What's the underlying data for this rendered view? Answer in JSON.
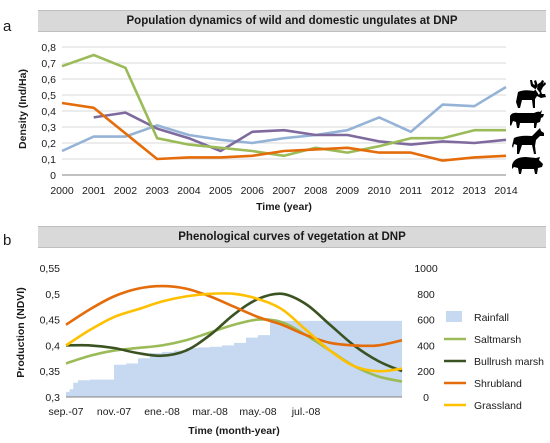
{
  "panels": {
    "a": {
      "letter": "a",
      "title": "Population dynamics of wild and domestic ungulates at DNP"
    },
    "b": {
      "letter": "b",
      "title": "Phenological curves of vegetation at DNP"
    }
  },
  "chart_data": [
    {
      "type": "line",
      "title": "Population dynamics of wild and domestic ungulates at DNP",
      "xlabel": "Time (year)",
      "ylabel": "Density (Ind/Ha)",
      "x": [
        2000,
        2001,
        2002,
        2003,
        2004,
        2005,
        2006,
        2007,
        2008,
        2009,
        2010,
        2011,
        2012,
        2013,
        2014
      ],
      "x_tick_labels": [
        "2000",
        "2001",
        "2002",
        "2003",
        "2004",
        "2005",
        "2006",
        "2007",
        "2008",
        "2009",
        "2010",
        "2011",
        "2012",
        "2013",
        "2014"
      ],
      "ylim": [
        0,
        0.8
      ],
      "y_ticks": [
        0,
        0.1,
        0.2,
        0.3,
        0.4,
        0.5,
        0.6,
        0.7,
        0.8
      ],
      "y_tick_labels": [
        "0",
        "0,1",
        "0,2",
        "0,3",
        "0,4",
        "0,5",
        "0,6",
        "0,7",
        "0,8"
      ],
      "grid": "horizontal",
      "legend": "animal silhouettes at right end of lines",
      "series": [
        {
          "color": "#95b3d7",
          "icon": "deer-icon",
          "values": [
            0.15,
            0.24,
            0.24,
            0.31,
            0.25,
            0.22,
            0.2,
            0.23,
            0.25,
            0.28,
            0.36,
            0.27,
            0.44,
            0.43,
            0.55
          ]
        },
        {
          "color": "#7f6a9e",
          "icon": "cattle-icon",
          "values": [
            null,
            0.36,
            0.39,
            0.29,
            0.23,
            0.15,
            0.27,
            0.28,
            0.25,
            0.25,
            0.21,
            0.19,
            0.21,
            0.2,
            0.22
          ]
        },
        {
          "color": "#9bbb59",
          "icon": "horse-icon",
          "values": [
            0.68,
            0.75,
            0.67,
            0.23,
            0.19,
            0.17,
            0.15,
            0.12,
            0.17,
            0.14,
            0.18,
            0.23,
            0.23,
            0.28,
            0.28
          ]
        },
        {
          "color": "#e46c0a",
          "icon": "boar-icon",
          "values": [
            0.45,
            0.42,
            0.26,
            0.1,
            0.11,
            0.11,
            0.12,
            0.15,
            0.16,
            0.17,
            0.14,
            0.14,
            0.09,
            0.11,
            0.12
          ]
        }
      ]
    },
    {
      "type": "line",
      "title": "Phenological curves of vegetation at DNP",
      "xlabel": "Time (month-year)",
      "ylabel": "Production (NDVI)",
      "x_tick_labels": [
        "sep.-07",
        "nov.-07",
        "ene.-08",
        "mar.-08",
        "may.-08",
        "jul.-08"
      ],
      "x_months": 14,
      "ylim": [
        0.3,
        0.55
      ],
      "y_ticks": [
        0.3,
        0.35,
        0.4,
        0.45,
        0.5,
        0.55
      ],
      "y_tick_labels": [
        "0,3",
        "0,35",
        "0,4",
        "0,45",
        "0,5",
        "0,55"
      ],
      "y2lim": [
        0,
        1000
      ],
      "y2_ticks": [
        0,
        200,
        400,
        600,
        800,
        1000
      ],
      "y2_tick_labels": [
        "0",
        "200",
        "400",
        "600",
        "800",
        "1000"
      ],
      "legend": "right",
      "rainfall": {
        "name": "Rainfall",
        "color": "#c6d9f1",
        "axis": "right",
        "x": [
          0,
          0.15,
          0.3,
          0.5,
          1.0,
          2.0,
          2.5,
          3.0,
          3.5,
          4.0,
          4.5,
          5.0,
          5.5,
          6.0,
          6.5,
          7.0,
          7.5,
          8.0,
          8.5,
          9.0,
          10.0,
          11.0,
          12.0,
          13.0,
          14.0
        ],
        "values": [
          40,
          60,
          110,
          130,
          135,
          250,
          260,
          300,
          340,
          350,
          360,
          380,
          385,
          390,
          400,
          420,
          460,
          480,
          580,
          590,
          590,
          590,
          590,
          590,
          590
        ]
      },
      "series": [
        {
          "name": "Saltmarsh",
          "color": "#9bbb59",
          "axis": "left",
          "x": [
            0,
            1,
            2,
            3,
            4,
            5,
            6,
            7,
            8,
            9,
            10,
            11,
            12,
            13,
            14
          ],
          "values": [
            0.365,
            0.38,
            0.39,
            0.395,
            0.4,
            0.41,
            0.425,
            0.44,
            0.45,
            0.445,
            0.42,
            0.39,
            0.36,
            0.34,
            0.33
          ]
        },
        {
          "name": "Bullrush marsh",
          "color": "#3b5323",
          "axis": "left",
          "x": [
            0,
            1,
            2,
            3,
            4,
            5,
            6,
            7,
            8,
            9,
            10,
            11,
            12,
            13,
            14
          ],
          "values": [
            0.4,
            0.4,
            0.395,
            0.385,
            0.38,
            0.39,
            0.42,
            0.46,
            0.49,
            0.5,
            0.48,
            0.44,
            0.4,
            0.37,
            0.35
          ]
        },
        {
          "name": "Shrubland",
          "color": "#e46c0a",
          "axis": "left",
          "x": [
            0,
            1,
            2,
            3,
            4,
            5,
            6,
            7,
            8,
            9,
            10,
            11,
            12,
            13,
            14
          ],
          "values": [
            0.44,
            0.47,
            0.495,
            0.51,
            0.515,
            0.51,
            0.495,
            0.475,
            0.455,
            0.44,
            0.42,
            0.405,
            0.4,
            0.4,
            0.41
          ]
        },
        {
          "name": "Grassland",
          "color": "#ffc000",
          "axis": "left",
          "x": [
            0,
            1,
            2,
            3,
            4,
            5,
            6,
            7,
            8,
            9,
            10,
            11,
            12,
            13,
            14
          ],
          "values": [
            0.4,
            0.43,
            0.455,
            0.47,
            0.485,
            0.495,
            0.5,
            0.5,
            0.49,
            0.47,
            0.43,
            0.39,
            0.36,
            0.35,
            0.355
          ]
        }
      ]
    }
  ]
}
